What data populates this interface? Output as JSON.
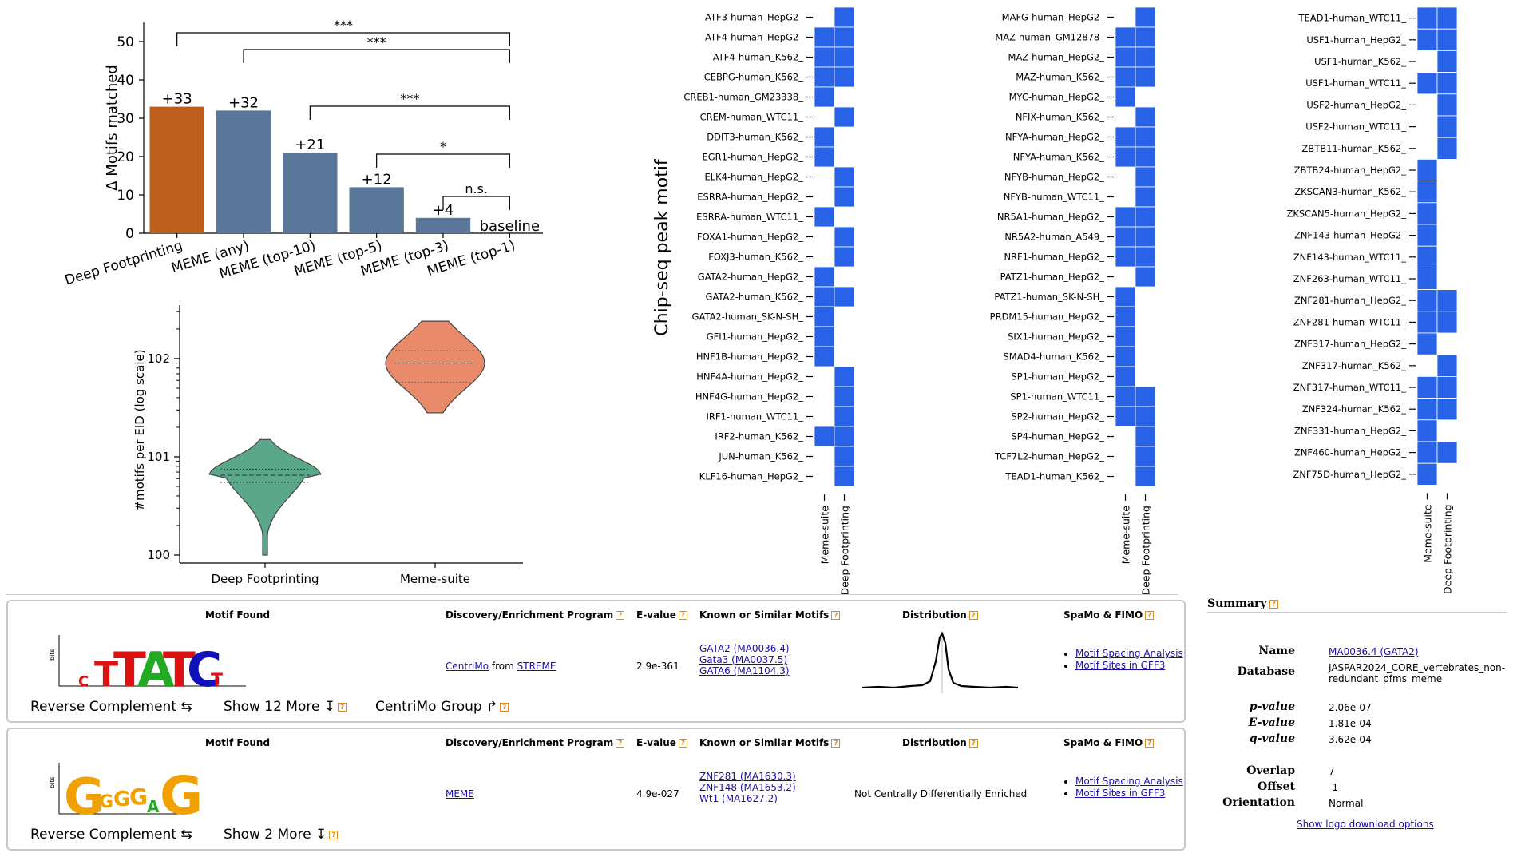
{
  "bar_chart": {
    "type": "bar",
    "ylabel": "Δ Motifs matched",
    "ylim": [
      0,
      55
    ],
    "yticks": [
      0,
      10,
      20,
      30,
      40,
      50
    ],
    "categories": [
      "Deep Footprinting",
      "MEME (any)",
      "MEME (top-10)",
      "MEME (top-5)",
      "MEME (top-3)",
      "MEME (top-1)"
    ],
    "values": [
      33,
      32,
      21,
      12,
      4,
      0
    ],
    "labels": [
      "+33",
      "+32",
      "+21",
      "+12",
      "+4",
      "baseline"
    ],
    "colors": [
      "#bd5e1d",
      "#5a7698",
      "#5a7698",
      "#5a7698",
      "#5a7698",
      "#5a7698"
    ],
    "significance": [
      {
        "from": 0,
        "to": 5,
        "label": "***"
      },
      {
        "from": 1,
        "to": 5,
        "label": "***"
      },
      {
        "from": 2,
        "to": 5,
        "label": "***"
      },
      {
        "from": 3,
        "to": 5,
        "label": "*"
      },
      {
        "from": 4,
        "to": 5,
        "label": "n.s."
      }
    ]
  },
  "violin_chart": {
    "type": "violin",
    "ylabel": "#motifs per EID (log scale)",
    "yscale": "log",
    "ylim": [
      1,
      350
    ],
    "yticks": [
      "10^0",
      "10^1",
      "10^2"
    ],
    "categories": [
      "Deep Footprinting",
      "Meme-suite"
    ],
    "colors": [
      "#5aa889",
      "#e98b6a"
    ],
    "groups": [
      {
        "name": "Deep Footprinting",
        "min": 1,
        "max": 15,
        "q1": 5.5,
        "median": 6.5,
        "q3": 7.5
      },
      {
        "name": "Meme-suite",
        "min": 28,
        "max": 240,
        "q1": 57,
        "median": 90,
        "q3": 120
      }
    ]
  },
  "heatmap": {
    "type": "heatmap",
    "ylabel": "Chip-seq peak motif",
    "columns": [
      "Meme-suite",
      "Deep Footprinting"
    ],
    "color": "#2862e6",
    "panels": [
      {
        "rows": [
          {
            "label": "ATF3-human_HepG2_",
            "meme": 0,
            "deep": 1
          },
          {
            "label": "ATF4-human_HepG2_",
            "meme": 1,
            "deep": 1
          },
          {
            "label": "ATF4-human_K562_",
            "meme": 1,
            "deep": 1
          },
          {
            "label": "CEBPG-human_K562_",
            "meme": 1,
            "deep": 1
          },
          {
            "label": "CREB1-human_GM23338_",
            "meme": 1,
            "deep": 0
          },
          {
            "label": "CREM-human_WTC11_",
            "meme": 0,
            "deep": 1
          },
          {
            "label": "DDIT3-human_K562_",
            "meme": 1,
            "deep": 0
          },
          {
            "label": "EGR1-human_HepG2_",
            "meme": 1,
            "deep": 0
          },
          {
            "label": "ELK4-human_HepG2_",
            "meme": 0,
            "deep": 1
          },
          {
            "label": "ESRRA-human_HepG2_",
            "meme": 0,
            "deep": 1
          },
          {
            "label": "ESRRA-human_WTC11_",
            "meme": 1,
            "deep": 0
          },
          {
            "label": "FOXA1-human_HepG2_",
            "meme": 0,
            "deep": 1
          },
          {
            "label": "FOXJ3-human_K562_",
            "meme": 0,
            "deep": 1
          },
          {
            "label": "GATA2-human_HepG2_",
            "meme": 1,
            "deep": 0
          },
          {
            "label": "GATA2-human_K562_",
            "meme": 1,
            "deep": 1
          },
          {
            "label": "GATA2-human_SK-N-SH_",
            "meme": 1,
            "deep": 0
          },
          {
            "label": "GFI1-human_HepG2_",
            "meme": 1,
            "deep": 0
          },
          {
            "label": "HNF1B-human_HepG2_",
            "meme": 1,
            "deep": 0
          },
          {
            "label": "HNF4A-human_HepG2_",
            "meme": 0,
            "deep": 1
          },
          {
            "label": "HNF4G-human_HepG2_",
            "meme": 0,
            "deep": 1
          },
          {
            "label": "IRF1-human_WTC11_",
            "meme": 0,
            "deep": 1
          },
          {
            "label": "IRF2-human_K562_",
            "meme": 1,
            "deep": 1
          },
          {
            "label": "JUN-human_K562_",
            "meme": 0,
            "deep": 1
          },
          {
            "label": "KLF16-human_HepG2_",
            "meme": 0,
            "deep": 1
          }
        ]
      },
      {
        "rows": [
          {
            "label": "MAFG-human_HepG2_",
            "meme": 0,
            "deep": 1
          },
          {
            "label": "MAZ-human_GM12878_",
            "meme": 1,
            "deep": 1
          },
          {
            "label": "MAZ-human_HepG2_",
            "meme": 1,
            "deep": 1
          },
          {
            "label": "MAZ-human_K562_",
            "meme": 1,
            "deep": 1
          },
          {
            "label": "MYC-human_HepG2_",
            "meme": 1,
            "deep": 0
          },
          {
            "label": "NFIX-human_K562_",
            "meme": 0,
            "deep": 1
          },
          {
            "label": "NFYA-human_HepG2_",
            "meme": 1,
            "deep": 1
          },
          {
            "label": "NFYA-human_K562_",
            "meme": 1,
            "deep": 1
          },
          {
            "label": "NFYB-human_HepG2_",
            "meme": 0,
            "deep": 1
          },
          {
            "label": "NFYB-human_WTC11_",
            "meme": 0,
            "deep": 1
          },
          {
            "label": "NR5A1-human_HepG2_",
            "meme": 1,
            "deep": 1
          },
          {
            "label": "NR5A2-human_A549_",
            "meme": 1,
            "deep": 1
          },
          {
            "label": "NRF1-human_HepG2_",
            "meme": 1,
            "deep": 1
          },
          {
            "label": "PATZ1-human_HepG2_",
            "meme": 0,
            "deep": 1
          },
          {
            "label": "PATZ1-human_SK-N-SH_",
            "meme": 1,
            "deep": 0
          },
          {
            "label": "PRDM15-human_HepG2_",
            "meme": 1,
            "deep": 0
          },
          {
            "label": "SIX1-human_HepG2_",
            "meme": 1,
            "deep": 0
          },
          {
            "label": "SMAD4-human_K562_",
            "meme": 1,
            "deep": 0
          },
          {
            "label": "SP1-human_HepG2_",
            "meme": 1,
            "deep": 0
          },
          {
            "label": "SP1-human_WTC11_",
            "meme": 1,
            "deep": 1
          },
          {
            "label": "SP2-human_HepG2_",
            "meme": 1,
            "deep": 1
          },
          {
            "label": "SP4-human_HepG2_",
            "meme": 0,
            "deep": 1
          },
          {
            "label": "TCF7L2-human_HepG2_",
            "meme": 0,
            "deep": 1
          },
          {
            "label": "TEAD1-human_K562_",
            "meme": 0,
            "deep": 1
          }
        ]
      },
      {
        "rows": [
          {
            "label": "TEAD1-human_WTC11_",
            "meme": 1,
            "deep": 1
          },
          {
            "label": "USF1-human_HepG2_",
            "meme": 1,
            "deep": 1
          },
          {
            "label": "USF1-human_K562_",
            "meme": 0,
            "deep": 1
          },
          {
            "label": "USF1-human_WTC11_",
            "meme": 1,
            "deep": 1
          },
          {
            "label": "USF2-human_HepG2_",
            "meme": 0,
            "deep": 1
          },
          {
            "label": "USF2-human_WTC11_",
            "meme": 0,
            "deep": 1
          },
          {
            "label": "ZBTB11-human_K562_",
            "meme": 0,
            "deep": 1
          },
          {
            "label": "ZBTB24-human_HepG2_",
            "meme": 1,
            "deep": 0
          },
          {
            "label": "ZKSCAN3-human_K562_",
            "meme": 1,
            "deep": 0
          },
          {
            "label": "ZKSCAN5-human_HepG2_",
            "meme": 1,
            "deep": 0
          },
          {
            "label": "ZNF143-human_HepG2_",
            "meme": 1,
            "deep": 0
          },
          {
            "label": "ZNF143-human_WTC11_",
            "meme": 1,
            "deep": 0
          },
          {
            "label": "ZNF263-human_WTC11_",
            "meme": 1,
            "deep": 0
          },
          {
            "label": "ZNF281-human_HepG2_",
            "meme": 1,
            "deep": 1
          },
          {
            "label": "ZNF281-human_WTC11_",
            "meme": 1,
            "deep": 1
          },
          {
            "label": "ZNF317-human_HepG2_",
            "meme": 1,
            "deep": 0
          },
          {
            "label": "ZNF317-human_K562_",
            "meme": 0,
            "deep": 1
          },
          {
            "label": "ZNF317-human_WTC11_",
            "meme": 1,
            "deep": 1
          },
          {
            "label": "ZNF324-human_K562_",
            "meme": 1,
            "deep": 1
          },
          {
            "label": "ZNF331-human_HepG2_",
            "meme": 1,
            "deep": 0
          },
          {
            "label": "ZNF460-human_HepG2_",
            "meme": 1,
            "deep": 1
          },
          {
            "label": "ZNF75D-human_HepG2_",
            "meme": 1,
            "deep": 0
          }
        ]
      }
    ]
  },
  "results_table": {
    "headers": {
      "motif": "Motif Found",
      "program": "Discovery/Enrichment Program",
      "evalue": "E-value",
      "known": "Known or Similar Motifs",
      "distribution": "Distribution",
      "spamo": "SpaMo & FIMO"
    },
    "rows": [
      {
        "logo_ylabel": "bits",
        "logo_letters": "TTATCT",
        "program_link1": "CentriMo",
        "program_from": "from",
        "program_link2": "STREME",
        "evalue": "2.9e-361",
        "known": [
          "GATA2 (MA0036.4)",
          "Gata3 (MA0037.5)",
          "GATA6 (MA1104.3)"
        ],
        "distribution_text": "",
        "spamo": [
          "Motif Spacing Analysis",
          "Motif Sites in GFF3"
        ],
        "controls": {
          "reverse": "Reverse Complement ⇆",
          "more": "Show 12 More ↧",
          "group": "CentriMo Group ↱"
        }
      },
      {
        "logo_ylabel": "bits",
        "logo_letters": "GGGGAG",
        "program_link1": "MEME",
        "evalue": "4.9e-027",
        "known": [
          "ZNF281 (MA1630.3)",
          "ZNF148 (MA1653.2)",
          "Wt1 (MA1627.2)"
        ],
        "distribution_text": "Not Centrally Differentially Enriched",
        "spamo": [
          "Motif Spacing Analysis",
          "Motif Sites in GFF3"
        ],
        "controls": {
          "reverse": "Reverse Complement ⇆",
          "more": "Show 2 More ↧"
        }
      }
    ]
  },
  "summary": {
    "title": "Summary",
    "name_label": "Name",
    "name_value": "MA0036.4 (GATA2)",
    "database_label": "Database",
    "database_value": "JASPAR2024_CORE_vertebrates_non-redundant_pfms_meme",
    "pvalue_label": "p-value",
    "pvalue": "2.06e-07",
    "evalue_label": "E-value",
    "evalue": "1.81e-04",
    "qvalue_label": "q-value",
    "qvalue": "3.62e-04",
    "overlap_label": "Overlap",
    "overlap": "7",
    "offset_label": "Offset",
    "offset": "-1",
    "orientation_label": "Orientation",
    "orientation": "Normal",
    "download_link": "Show logo download options"
  }
}
